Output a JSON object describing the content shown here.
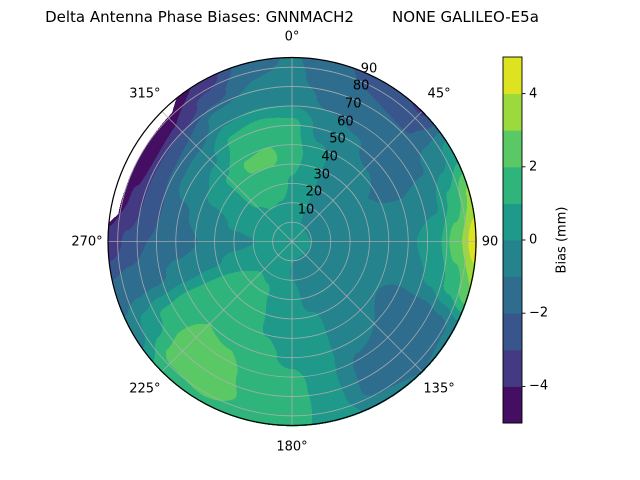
{
  "title": "Delta Antenna Phase Biases: GNNMACH2        NONE GALILEO-E5a",
  "colorbar": {
    "label": "Bias (mm)",
    "tick_values": [
      4,
      2,
      0,
      -2,
      -4
    ],
    "tick_labels": [
      "4",
      "2",
      "0",
      "−2",
      "−4"
    ],
    "vmin": -5,
    "vmax": 5,
    "n_bins": 10
  },
  "chart_data": {
    "type": "heatmap",
    "projection": "polar",
    "title": "Delta Antenna Phase Biases: GNNMACH2        NONE GALILEO-E5a",
    "colorbar_label": "Bias (mm)",
    "angular_tick_labels": [
      {
        "az": 0,
        "text": "0°"
      },
      {
        "az": 45,
        "text": "45°"
      },
      {
        "az": 90,
        "text": "90"
      },
      {
        "az": 135,
        "text": "135°"
      },
      {
        "az": 180,
        "text": "180°"
      },
      {
        "az": 225,
        "text": "225°"
      },
      {
        "az": 270,
        "text": "270°"
      },
      {
        "az": 315,
        "text": "315°"
      }
    ],
    "radial_tick_labels": [
      "10",
      "20",
      "30",
      "40",
      "50",
      "60",
      "70",
      "80",
      "90"
    ],
    "azimuth_deg": [
      0,
      15,
      30,
      45,
      60,
      75,
      90,
      105,
      120,
      135,
      150,
      165,
      180,
      195,
      210,
      225,
      240,
      255,
      270,
      285,
      300,
      315,
      330,
      345
    ],
    "zenith_deg": [
      0,
      15,
      30,
      45,
      60,
      75,
      85,
      95
    ],
    "bias_mm": [
      [
        0.5,
        0.6,
        0.9,
        1.4,
        1.3,
        -0.5,
        -0.8,
        -0.9
      ],
      [
        0.5,
        0.2,
        0.3,
        0.5,
        -0.4,
        -1.2,
        -1.6,
        -1.8
      ],
      [
        0.5,
        -0.2,
        -0.3,
        -0.5,
        -0.9,
        -1.5,
        -2.0,
        -2.6
      ],
      [
        0.5,
        -0.3,
        -0.4,
        -0.7,
        -1.2,
        -1.5,
        -2.2,
        -3.1
      ],
      [
        0.5,
        -0.3,
        -0.5,
        -1.0,
        -1.3,
        -1.1,
        -0.5,
        0.4
      ],
      [
        0.5,
        -0.3,
        -0.6,
        -0.9,
        -0.8,
        -0.2,
        1.2,
        3.2
      ],
      [
        0.5,
        -0.2,
        -0.5,
        -0.6,
        -0.2,
        0.8,
        2.6,
        4.8
      ],
      [
        0.5,
        -0.2,
        -0.4,
        -0.6,
        -0.6,
        0.2,
        1.4,
        3.0
      ],
      [
        0.5,
        -0.3,
        -0.4,
        -0.8,
        -1.4,
        -1.7,
        -1.4,
        -0.8
      ],
      [
        0.5,
        -0.3,
        -0.4,
        -0.6,
        -1.0,
        -1.5,
        -1.7,
        -1.0
      ],
      [
        0.5,
        -0.3,
        -0.2,
        -0.4,
        -0.8,
        -1.3,
        -1.5,
        -0.6
      ],
      [
        0.5,
        -0.3,
        -0.2,
        0.2,
        0.3,
        0.2,
        0.3,
        0.5
      ],
      [
        0.5,
        -0.1,
        0.3,
        0.4,
        0.8,
        1.4,
        1.5,
        1.3
      ],
      [
        0.5,
        0.5,
        0.8,
        0.9,
        1.2,
        1.6,
        1.8,
        1.4
      ],
      [
        0.5,
        0.7,
        1.1,
        1.4,
        1.9,
        2.4,
        2.6,
        1.8
      ],
      [
        0.5,
        0.8,
        1.2,
        1.5,
        2.0,
        2.5,
        2.4,
        1.4
      ],
      [
        0.5,
        0.7,
        1.0,
        1.3,
        1.5,
        1.2,
        0.4,
        -0.6
      ],
      [
        0.5,
        0.4,
        0.2,
        -0.2,
        -0.7,
        -1.3,
        -1.5,
        -1.8
      ],
      [
        0.5,
        0.1,
        -0.4,
        -0.9,
        -1.5,
        -2.0,
        -2.8,
        -3.7
      ],
      [
        0.5,
        0.4,
        0.1,
        -0.4,
        -1.2,
        -2.4,
        -3.9,
        -4.9
      ],
      [
        0.5,
        0.5,
        0.4,
        0.2,
        -0.5,
        -2.2,
        -4.3,
        -5.0
      ],
      [
        0.5,
        0.7,
        1.1,
        1.1,
        -0.2,
        -2.0,
        -4.0,
        -4.9
      ],
      [
        0.5,
        0.8,
        1.6,
        2.1,
        1.2,
        -0.6,
        -2.6,
        -3.8
      ],
      [
        0.5,
        0.7,
        1.4,
        2.2,
        1.5,
        -0.3,
        -1.0,
        -1.5
      ]
    ],
    "levels": [
      -5,
      -4,
      -3,
      -2,
      -1,
      0,
      1,
      2,
      3,
      4,
      5
    ],
    "palette": [
      "#440f62",
      "#443a83",
      "#38558c",
      "#2e6d8e",
      "#25838e",
      "#1f998a",
      "#2fb47c",
      "#5ac864",
      "#9bd93c",
      "#dde221"
    ],
    "no_data_boundary": [
      [
        276,
        95
      ],
      [
        279,
        91
      ],
      [
        288,
        90.4
      ],
      [
        300,
        90.3
      ],
      [
        310,
        90.5
      ],
      [
        317,
        91
      ],
      [
        321,
        95
      ]
    ]
  }
}
